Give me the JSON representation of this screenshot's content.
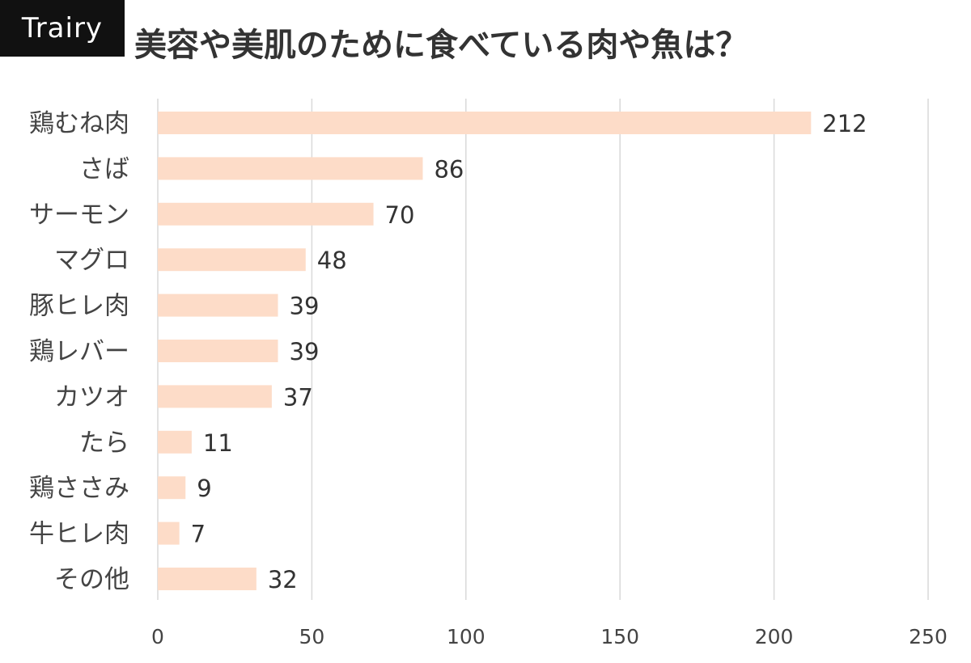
{
  "brand": {
    "logo_text": "Trairy"
  },
  "colors": {
    "bar": "#FDDCC8",
    "grid": "#D9D9D9",
    "badge_bg": "#111111",
    "text": "#333333"
  },
  "chart_data": {
    "type": "bar",
    "orientation": "horizontal",
    "title": "美容や美肌のために食べている肉や魚は？",
    "categories": [
      "鶏むね肉",
      "さば",
      "サーモン",
      "マグロ",
      "豚ヒレ肉",
      "鶏レバー",
      "カツオ",
      "たら",
      "鶏ささみ",
      "牛ヒレ肉",
      "その他"
    ],
    "values": [
      212,
      86,
      70,
      48,
      39,
      39,
      37,
      11,
      9,
      7,
      32
    ],
    "xlim": [
      0,
      250
    ],
    "xticks": [
      0,
      50,
      100,
      150,
      200,
      250
    ],
    "xlabel": "",
    "ylabel": "",
    "grid": "vertical",
    "data_labels": true,
    "legend": "none"
  }
}
